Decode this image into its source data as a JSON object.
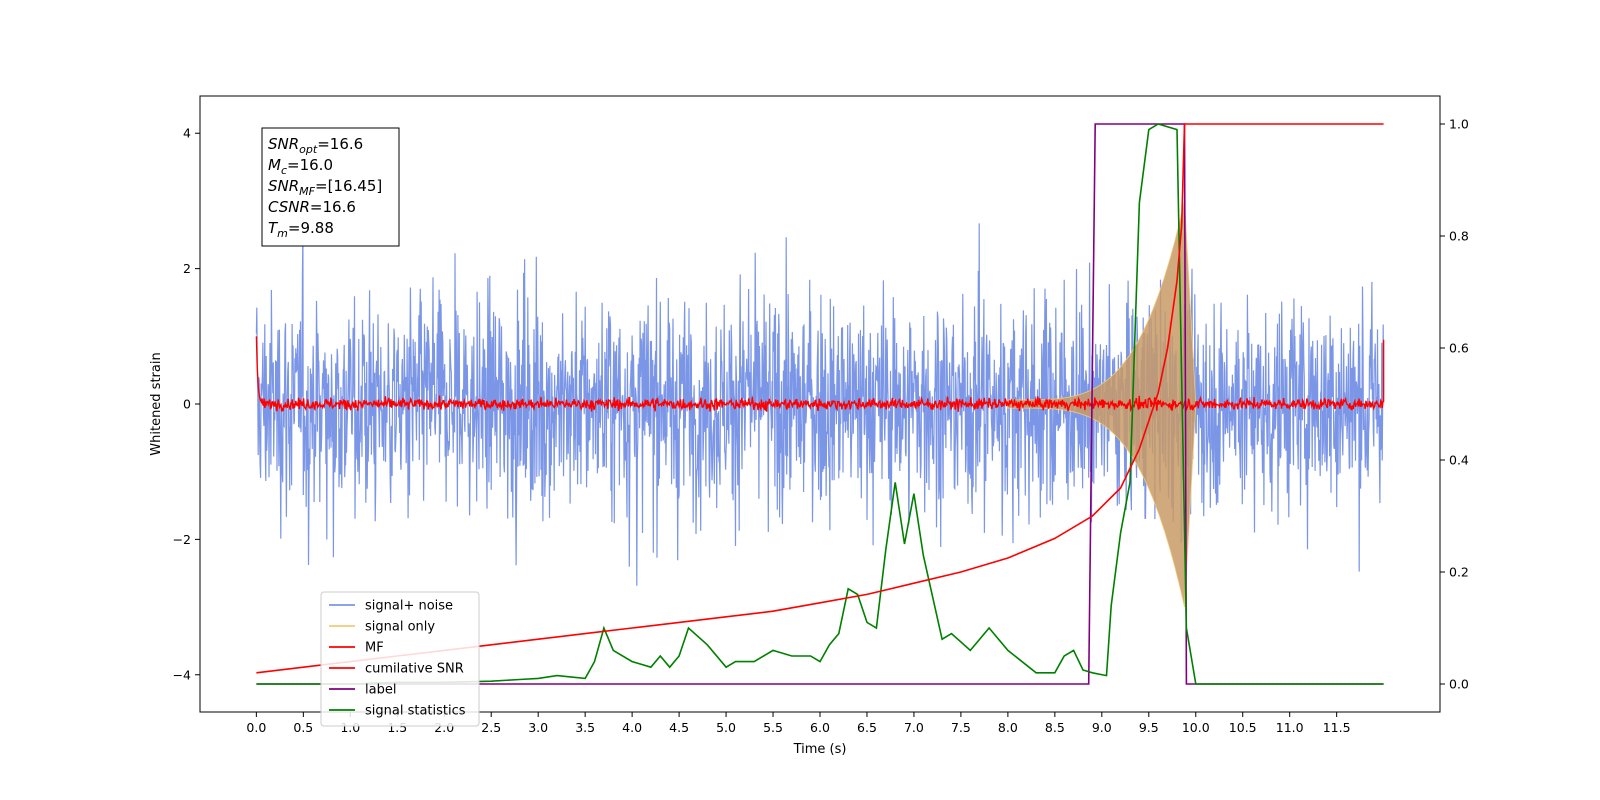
{
  "chart_data": {
    "type": "line",
    "xlabel": "Time (s)",
    "ylabel": "Whitened strain",
    "xlim": [
      -0.6,
      12.6
    ],
    "ylim": [
      -4.55,
      4.55
    ],
    "ylim_right": [
      -0.05,
      1.05
    ],
    "x_ticks": [
      "0.0",
      "0.5",
      "1.0",
      "1.5",
      "2.0",
      "2.5",
      "3.0",
      "3.5",
      "4.0",
      "4.5",
      "5.0",
      "5.5",
      "6.0",
      "6.5",
      "7.0",
      "7.5",
      "8.0",
      "8.5",
      "9.0",
      "9.5",
      "10.0",
      "10.5",
      "11.0",
      "11.5"
    ],
    "y_ticks_left": [
      "4",
      "2",
      "0",
      "−2",
      "−4"
    ],
    "y_ticks_right": [
      "1.0",
      "0.8",
      "0.6",
      "0.4",
      "0.2",
      "0.0"
    ],
    "grid": false,
    "legend_position": "lower-left",
    "annotation_box": {
      "lines": [
        {
          "base": "SNR",
          "sub": "opt",
          "value": "=16.6"
        },
        {
          "base": "M",
          "sub": "c",
          "value": "=16.0"
        },
        {
          "base": "SNR",
          "sub": "MF",
          "value": "=[16.45]"
        },
        {
          "base": "CSNR",
          "sub": "",
          "value": "=16.6"
        },
        {
          "base": "T",
          "sub": "m",
          "value": "=9.88"
        }
      ]
    },
    "series": [
      {
        "name": "signal+ noise",
        "color": "#7b96e6",
        "axis": "left",
        "style": "dense noisy band, amplitude about ±2 with spikes to ±3.4",
        "x_range": [
          0,
          12
        ]
      },
      {
        "name": "signal only",
        "color": "#f5c97a",
        "axis": "left",
        "style": "chirp",
        "x_range": [
          8.0,
          9.88
        ],
        "peak_amplitude": 3.0
      },
      {
        "name": "MF",
        "color": "#ff0000",
        "axis": "left",
        "style": "noisy trace near 0, amplitude about 0.1",
        "x_range": [
          0,
          12
        ]
      },
      {
        "name": "cumilative SNR",
        "color": "#ff0000",
        "axis": "right",
        "x": [
          0.0,
          0.5,
          1.0,
          1.5,
          2.0,
          2.5,
          3.0,
          3.5,
          4.0,
          4.5,
          5.0,
          5.5,
          6.0,
          6.5,
          7.0,
          7.5,
          8.0,
          8.5,
          8.9,
          9.2,
          9.4,
          9.6,
          9.7,
          9.8,
          9.85,
          9.88,
          12.0
        ],
        "y": [
          0.02,
          0.03,
          0.04,
          0.05,
          0.06,
          0.07,
          0.08,
          0.09,
          0.1,
          0.11,
          0.12,
          0.13,
          0.145,
          0.16,
          0.18,
          0.2,
          0.225,
          0.26,
          0.3,
          0.35,
          0.42,
          0.52,
          0.6,
          0.72,
          0.82,
          1.0,
          1.0
        ]
      },
      {
        "name": "label",
        "color": "#800080",
        "axis": "right",
        "x": [
          0.0,
          8.86,
          8.93,
          9.88,
          9.9,
          12.0
        ],
        "y": [
          0.0,
          0.0,
          1.0,
          1.0,
          0.0,
          0.0
        ]
      },
      {
        "name": "signal statistics",
        "color": "#008000",
        "axis": "right",
        "x": [
          0.0,
          0.5,
          1.0,
          1.5,
          2.0,
          2.5,
          2.8,
          3.0,
          3.2,
          3.5,
          3.6,
          3.7,
          3.8,
          4.0,
          4.2,
          4.3,
          4.4,
          4.5,
          4.6,
          4.8,
          5.0,
          5.1,
          5.3,
          5.5,
          5.7,
          5.9,
          6.0,
          6.1,
          6.2,
          6.3,
          6.4,
          6.5,
          6.6,
          6.7,
          6.8,
          6.9,
          7.0,
          7.1,
          7.3,
          7.4,
          7.6,
          7.8,
          8.0,
          8.3,
          8.5,
          8.6,
          8.7,
          8.8,
          8.9,
          9.05,
          9.1,
          9.2,
          9.3,
          9.4,
          9.5,
          9.6,
          9.8,
          9.9,
          10.0,
          12.0
        ],
        "y": [
          0.0,
          0.0,
          0.0,
          0.003,
          0.003,
          0.005,
          0.008,
          0.01,
          0.015,
          0.01,
          0.04,
          0.1,
          0.06,
          0.04,
          0.03,
          0.05,
          0.03,
          0.05,
          0.1,
          0.07,
          0.03,
          0.04,
          0.04,
          0.06,
          0.05,
          0.05,
          0.04,
          0.07,
          0.09,
          0.17,
          0.16,
          0.11,
          0.1,
          0.24,
          0.36,
          0.25,
          0.34,
          0.23,
          0.08,
          0.09,
          0.06,
          0.1,
          0.06,
          0.02,
          0.02,
          0.05,
          0.06,
          0.025,
          0.02,
          0.015,
          0.14,
          0.27,
          0.36,
          0.86,
          0.99,
          1.0,
          0.99,
          0.1,
          0.0,
          0.0
        ]
      }
    ]
  }
}
